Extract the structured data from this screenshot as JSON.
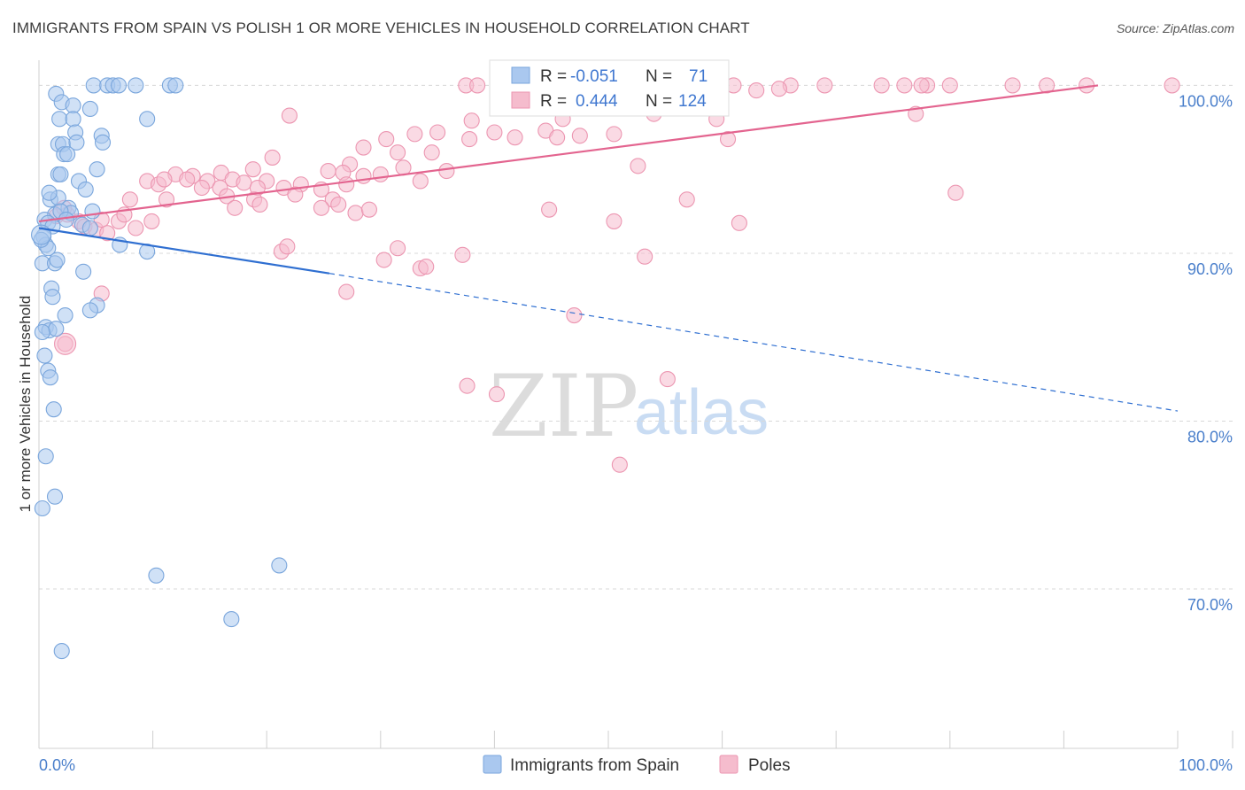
{
  "title": "IMMIGRANTS FROM SPAIN VS POLISH 1 OR MORE VEHICLES IN HOUSEHOLD CORRELATION CHART",
  "source": "Source: ZipAtlas.com",
  "colors": {
    "blue_fill": "#aac8ef",
    "blue_stroke": "#7aa6dc",
    "blue_line": "#2f6fd1",
    "pink_fill": "#f5bccd",
    "pink_stroke": "#ec96b1",
    "pink_line": "#e3648f",
    "grid": "#d8d8d8",
    "tick_text": "#4a7fcb"
  },
  "legend": {
    "rows": [
      {
        "r_label": "R =",
        "r_value": "-0.051",
        "n_label": "N =",
        "n_value": "71"
      },
      {
        "r_label": "R =",
        "r_value": "0.444",
        "n_label": "N =",
        "n_value": "124"
      }
    ]
  },
  "chart_data": {
    "type": "scatter",
    "title": "IMMIGRANTS FROM SPAIN VS POLISH 1 OR MORE VEHICLES IN HOUSEHOLD CORRELATION CHART",
    "xlabel": "",
    "ylabel": "1 or more Vehicles in Household",
    "xlim": [
      0,
      100
    ],
    "ylim": [
      60.5,
      101.5
    ],
    "x_tick_labels": [
      "0.0%",
      "100.0%"
    ],
    "y_ticks": [
      70,
      80,
      90,
      100
    ],
    "y_tick_labels": [
      "70.0%",
      "80.0%",
      "90.0%",
      "100.0%"
    ],
    "watermark": {
      "zip": "ZIP",
      "atlas": "atlas"
    },
    "series": [
      {
        "name": "Immigrants from Spain",
        "color": "#aac8ef",
        "r": -0.051,
        "n": 71,
        "trend": {
          "x0": 0,
          "y0": 91.5,
          "x1": 25.5,
          "y1": 88.8,
          "dash_x1": 100,
          "dash_y1": 80.6
        },
        "points": [
          [
            1.5,
            99.5
          ],
          [
            2.0,
            99.0
          ],
          [
            3.0,
            98.8
          ],
          [
            4.5,
            98.6
          ],
          [
            1.8,
            98.0
          ],
          [
            3.0,
            98.0
          ],
          [
            4.8,
            100.0
          ],
          [
            6.0,
            100.0
          ],
          [
            6.5,
            100.0
          ],
          [
            7.0,
            100.0
          ],
          [
            8.5,
            100.0
          ],
          [
            11.5,
            100.0
          ],
          [
            12.0,
            100.0
          ],
          [
            9.5,
            98.0
          ],
          [
            3.2,
            97.2
          ],
          [
            5.5,
            97.0
          ],
          [
            5.6,
            96.6
          ],
          [
            1.7,
            96.5
          ],
          [
            2.1,
            96.5
          ],
          [
            3.3,
            96.6
          ],
          [
            2.2,
            95.9
          ],
          [
            2.5,
            95.9
          ],
          [
            5.1,
            95.0
          ],
          [
            1.7,
            94.7
          ],
          [
            1.9,
            94.7
          ],
          [
            3.5,
            94.3
          ],
          [
            4.1,
            93.8
          ],
          [
            1.0,
            93.2
          ],
          [
            1.7,
            93.3
          ],
          [
            2.6,
            92.7
          ],
          [
            2.8,
            92.4
          ],
          [
            4.7,
            92.5
          ],
          [
            1.4,
            92.3
          ],
          [
            0.5,
            92.0
          ],
          [
            0.8,
            91.8
          ],
          [
            1.2,
            91.6
          ],
          [
            3.8,
            91.7
          ],
          [
            4.5,
            91.5
          ],
          [
            0.4,
            91.0
          ],
          [
            0.6,
            90.5
          ],
          [
            0.8,
            90.3
          ],
          [
            7.1,
            90.5
          ],
          [
            9.5,
            90.1
          ],
          [
            0.3,
            89.4
          ],
          [
            1.4,
            89.4
          ],
          [
            1.6,
            89.6
          ],
          [
            3.9,
            88.9
          ],
          [
            1.1,
            87.9
          ],
          [
            1.2,
            87.4
          ],
          [
            5.1,
            86.9
          ],
          [
            4.5,
            86.6
          ],
          [
            2.3,
            86.3
          ],
          [
            0.6,
            85.6
          ],
          [
            0.9,
            85.4
          ],
          [
            1.5,
            85.5
          ],
          [
            0.3,
            85.3
          ],
          [
            0.5,
            83.9
          ],
          [
            0.8,
            83.0
          ],
          [
            1.0,
            82.6
          ],
          [
            1.3,
            80.7
          ],
          [
            0.6,
            77.9
          ],
          [
            1.4,
            75.5
          ],
          [
            0.3,
            74.8
          ],
          [
            10.3,
            70.8
          ],
          [
            21.1,
            71.4
          ],
          [
            16.9,
            68.2
          ],
          [
            2.0,
            66.3
          ],
          [
            0.2,
            90.8
          ],
          [
            1.9,
            92.5
          ],
          [
            2.4,
            92.0
          ],
          [
            0.9,
            93.6
          ]
        ]
      },
      {
        "name": "Poles",
        "color": "#f5bccd",
        "r": 0.444,
        "n": 124,
        "trend": {
          "x0": 0,
          "y0": 91.9,
          "x1": 93,
          "y1": 100.0
        },
        "points": [
          [
            37.5,
            100.0
          ],
          [
            38.5,
            100.0
          ],
          [
            40.5,
            100.0
          ],
          [
            42.5,
            100.0
          ],
          [
            44.0,
            100.0
          ],
          [
            47.0,
            100.0
          ],
          [
            49.0,
            100.0
          ],
          [
            52.0,
            100.0
          ],
          [
            55.0,
            100.0
          ],
          [
            58.0,
            100.0
          ],
          [
            61.0,
            100.0
          ],
          [
            66.0,
            100.0
          ],
          [
            69.0,
            100.0
          ],
          [
            74.0,
            100.0
          ],
          [
            78.0,
            100.0
          ],
          [
            80.0,
            100.0
          ],
          [
            85.5,
            100.0
          ],
          [
            88.5,
            100.0
          ],
          [
            92.0,
            100.0
          ],
          [
            99.5,
            100.0
          ],
          [
            76.0,
            100.0
          ],
          [
            77.5,
            100.0
          ],
          [
            41.5,
            99.6
          ],
          [
            43.0,
            99.7
          ],
          [
            45.0,
            99.5
          ],
          [
            48.0,
            99.8
          ],
          [
            50.0,
            99.7
          ],
          [
            53.0,
            99.6
          ],
          [
            56.0,
            99.8
          ],
          [
            59.0,
            99.6
          ],
          [
            63.0,
            99.7
          ],
          [
            65.0,
            99.8
          ],
          [
            22.0,
            98.2
          ],
          [
            38.0,
            97.9
          ],
          [
            46.0,
            98.0
          ],
          [
            54.0,
            98.3
          ],
          [
            59.5,
            98.0
          ],
          [
            77.0,
            98.3
          ],
          [
            44.5,
            97.3
          ],
          [
            35.0,
            97.2
          ],
          [
            33.0,
            97.1
          ],
          [
            30.5,
            96.8
          ],
          [
            28.5,
            96.3
          ],
          [
            37.8,
            96.8
          ],
          [
            40.0,
            97.2
          ],
          [
            41.8,
            96.9
          ],
          [
            45.5,
            96.9
          ],
          [
            47.5,
            97.0
          ],
          [
            50.5,
            97.1
          ],
          [
            60.5,
            96.8
          ],
          [
            34.5,
            96.0
          ],
          [
            31.5,
            96.0
          ],
          [
            20.5,
            95.7
          ],
          [
            27.3,
            95.3
          ],
          [
            32.0,
            95.1
          ],
          [
            35.8,
            94.9
          ],
          [
            52.6,
            95.2
          ],
          [
            25.4,
            94.9
          ],
          [
            26.7,
            94.8
          ],
          [
            30.0,
            94.7
          ],
          [
            18.8,
            95.0
          ],
          [
            16.0,
            94.8
          ],
          [
            13.5,
            94.6
          ],
          [
            12.0,
            94.7
          ],
          [
            9.5,
            94.3
          ],
          [
            10.5,
            94.1
          ],
          [
            11.0,
            94.4
          ],
          [
            13.0,
            94.4
          ],
          [
            14.8,
            94.3
          ],
          [
            17.0,
            94.4
          ],
          [
            18.0,
            94.2
          ],
          [
            20.0,
            94.3
          ],
          [
            21.5,
            93.9
          ],
          [
            23.0,
            94.1
          ],
          [
            24.8,
            93.8
          ],
          [
            27.0,
            94.1
          ],
          [
            28.5,
            94.6
          ],
          [
            33.5,
            94.3
          ],
          [
            14.3,
            93.9
          ],
          [
            15.9,
            93.9
          ],
          [
            19.2,
            93.9
          ],
          [
            16.5,
            93.4
          ],
          [
            18.9,
            93.2
          ],
          [
            22.5,
            93.5
          ],
          [
            8.0,
            93.2
          ],
          [
            11.2,
            93.2
          ],
          [
            25.8,
            93.2
          ],
          [
            26.3,
            92.9
          ],
          [
            24.8,
            92.7
          ],
          [
            19.4,
            92.9
          ],
          [
            17.2,
            92.7
          ],
          [
            27.8,
            92.4
          ],
          [
            29.0,
            92.6
          ],
          [
            44.8,
            92.6
          ],
          [
            56.9,
            93.2
          ],
          [
            80.5,
            93.6
          ],
          [
            1.5,
            92.2
          ],
          [
            2.5,
            92.3
          ],
          [
            3.5,
            91.9
          ],
          [
            4.0,
            91.6
          ],
          [
            5.0,
            91.4
          ],
          [
            6.0,
            91.2
          ],
          [
            7.0,
            91.9
          ],
          [
            8.5,
            91.5
          ],
          [
            5.5,
            92.0
          ],
          [
            2.2,
            92.7
          ],
          [
            7.5,
            92.3
          ],
          [
            9.9,
            91.9
          ],
          [
            50.5,
            91.9
          ],
          [
            61.5,
            91.8
          ],
          [
            21.3,
            90.1
          ],
          [
            21.8,
            90.4
          ],
          [
            30.3,
            89.6
          ],
          [
            31.5,
            90.3
          ],
          [
            37.2,
            89.9
          ],
          [
            53.2,
            89.8
          ],
          [
            33.5,
            89.1
          ],
          [
            34.0,
            89.2
          ],
          [
            27.0,
            87.7
          ],
          [
            5.5,
            87.6
          ],
          [
            47.0,
            86.3
          ],
          [
            2.3,
            84.6
          ],
          [
            37.6,
            82.1
          ],
          [
            40.2,
            81.6
          ],
          [
            55.2,
            82.5
          ],
          [
            51.0,
            77.4
          ]
        ]
      }
    ],
    "legend_bottom": [
      "Immigrants from Spain",
      "Poles"
    ]
  }
}
